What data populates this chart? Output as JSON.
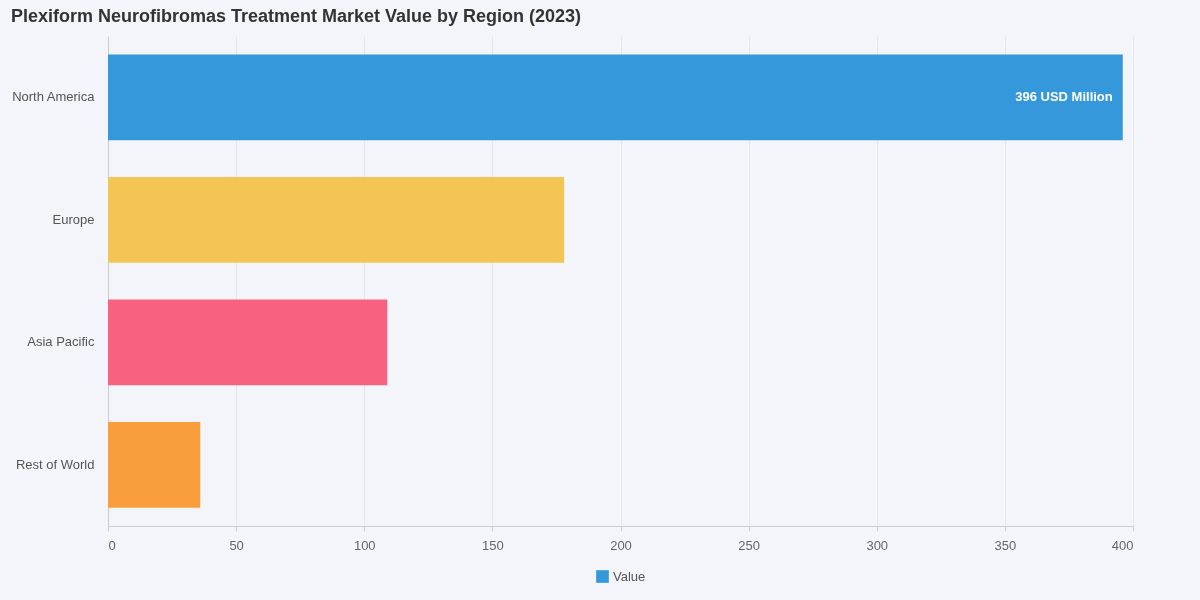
{
  "chart_data": {
    "type": "bar",
    "orientation": "horizontal",
    "title": "Plexiform Neurofibromas Treatment Market Value by Region (2023)",
    "categories": [
      "North America",
      "Europe",
      "Asia Pacific",
      "Rest of World"
    ],
    "series": [
      {
        "name": "Value",
        "color": "#3498db",
        "colors": [
          "#3498db",
          "#f2c554",
          "#f6627f",
          "#f89e3d"
        ],
        "values": [
          396,
          178,
          109,
          36
        ],
        "value_labels": [
          "396 USD Million",
          null,
          null,
          null
        ]
      }
    ],
    "xlim": [
      0,
      400
    ],
    "xticks": [
      0,
      50,
      100,
      150,
      200,
      250,
      300,
      350,
      400
    ],
    "grid": "x",
    "legend": "bottom"
  }
}
